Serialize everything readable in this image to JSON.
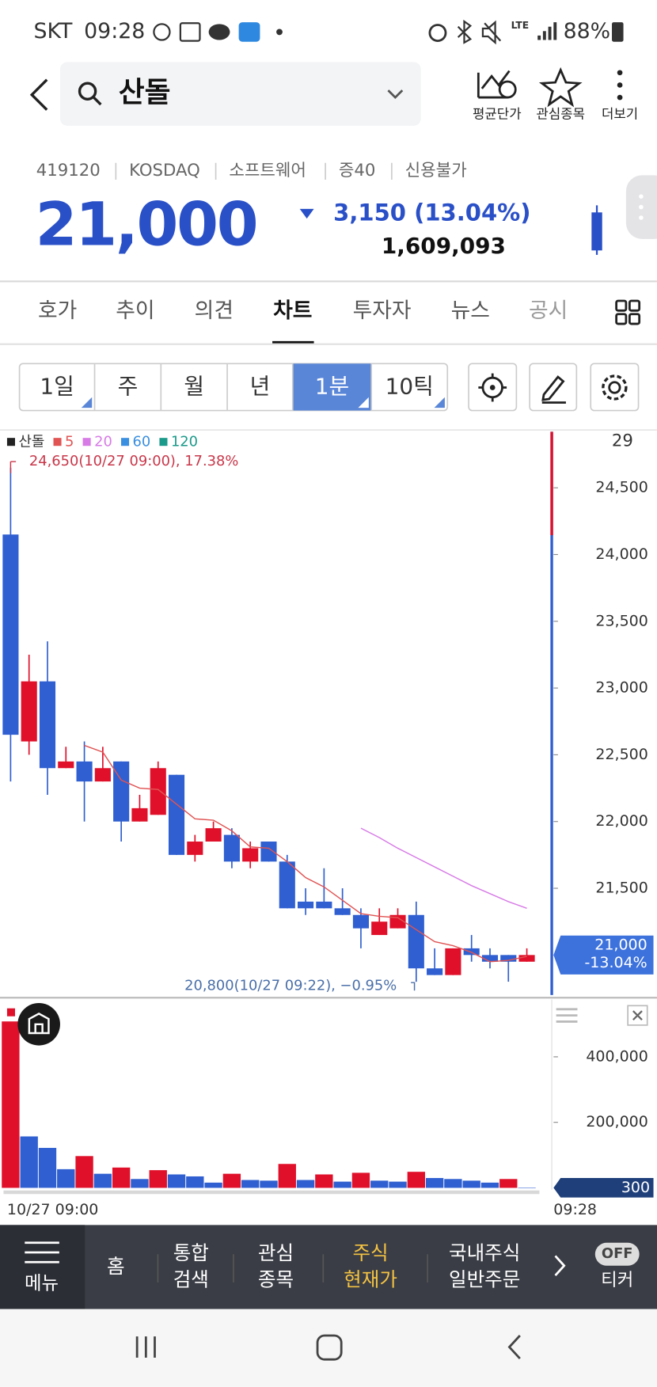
{
  "status_bar": {
    "carrier": "SKT",
    "time": "09:28",
    "network": "LTE",
    "battery": "88%"
  },
  "header": {
    "search": "산돌",
    "actions": [
      "평균단가",
      "관심종목",
      "더보기"
    ]
  },
  "stock": {
    "code": "419120",
    "market": "KOSDAQ",
    "sector": "소프트웨어",
    "margin": "증40",
    "credit": "신용불가",
    "price": "21,000",
    "change": "3,150 (13.04%)",
    "volume": "1,609,093"
  },
  "tabs": [
    "호가",
    "추이",
    "의견",
    "차트",
    "투자자",
    "뉴스",
    "공시"
  ],
  "periods": [
    "1일",
    "주",
    "월",
    "년",
    "1분",
    "10틱"
  ],
  "chart_data": [
    {
      "type": "candlestick",
      "top_label": "29",
      "categories": [
        "10/27 09:00",
        null,
        null,
        null,
        null,
        null,
        null,
        null,
        null,
        null,
        null,
        null,
        null,
        null,
        null,
        null,
        null,
        null,
        null,
        null,
        null,
        null,
        null,
        null,
        null,
        null,
        null,
        null,
        "09:28"
      ],
      "series": [
        {
          "name": "산돌",
          "color": "#222222",
          "up_color": "#e0102a",
          "down_color": "#2f5fd0",
          "open": [
            24150,
            22600,
            23050,
            22400,
            22450,
            22300,
            22450,
            22000,
            22050,
            22350,
            21750,
            21850,
            21900,
            21700,
            21850,
            21700,
            21400,
            21400,
            21350,
            21300,
            21150,
            21200,
            21300,
            20900,
            20850,
            21050,
            21000,
            21000,
            20950
          ],
          "high": [
            24650,
            23250,
            23350,
            22560,
            22600,
            22560,
            22450,
            22200,
            22450,
            22350,
            21900,
            22000,
            21950,
            21850,
            21850,
            21750,
            21500,
            21650,
            21500,
            21350,
            21350,
            21350,
            21400,
            21050,
            21050,
            21150,
            21050,
            21000,
            21050
          ],
          "low": [
            22300,
            22500,
            22200,
            22400,
            22000,
            22300,
            21850,
            22000,
            22050,
            21750,
            21700,
            21850,
            21650,
            21650,
            21700,
            21350,
            21300,
            21350,
            21300,
            21050,
            21150,
            21200,
            20800,
            20850,
            20850,
            20950,
            20900,
            20800,
            20950
          ],
          "close": [
            22650,
            23050,
            22400,
            22450,
            22300,
            22400,
            22000,
            22100,
            22400,
            21750,
            21850,
            21950,
            21700,
            21800,
            21700,
            21350,
            21350,
            21350,
            21300,
            21200,
            21250,
            21300,
            20900,
            20850,
            21050,
            21000,
            20950,
            20950,
            21000
          ]
        },
        {
          "name": "5",
          "color": "#e05454",
          "values": [
            null,
            null,
            null,
            null,
            22570,
            22520,
            22310,
            22250,
            22240,
            22130,
            22020,
            22010,
            21930,
            21810,
            21800,
            21700,
            21580,
            21510,
            21410,
            21310,
            21290,
            21280,
            21190,
            21100,
            21070,
            21020,
            20950,
            20960,
            20990
          ]
        },
        {
          "name": "20",
          "color": "#d77be6",
          "values": [
            null,
            null,
            null,
            null,
            null,
            null,
            null,
            null,
            null,
            null,
            null,
            null,
            null,
            null,
            null,
            null,
            null,
            null,
            null,
            21950,
            21880,
            21800,
            21730,
            21660,
            21590,
            21520,
            21460,
            21400,
            21350
          ]
        },
        {
          "name": "60",
          "color": "#3b8fe0",
          "values": [
            null,
            null,
            null,
            null,
            null,
            null,
            null,
            null,
            null,
            null,
            null,
            null,
            null,
            null,
            null,
            null,
            null,
            null,
            null,
            null,
            null,
            null,
            null,
            null,
            null,
            null,
            null,
            null,
            null
          ]
        },
        {
          "name": "120",
          "color": "#1a9a8a",
          "values": [
            null,
            null,
            null,
            null,
            null,
            null,
            null,
            null,
            null,
            null,
            null,
            null,
            null,
            null,
            null,
            null,
            null,
            null,
            null,
            null,
            null,
            null,
            null,
            null,
            null,
            null,
            null,
            null,
            null
          ]
        }
      ],
      "annotations": [
        {
          "index": 0,
          "value": 24650,
          "text": "24,650(10/27 09:00), 17.38%",
          "color": "#c8374a"
        },
        {
          "index": 22,
          "value": 20800,
          "text": "20,800(10/27 09:22), −0.95%",
          "color": "#4a6fa8"
        }
      ],
      "current": {
        "value": 21000,
        "label": "21,000",
        "change_label": "-13.04%"
      },
      "ylim": [
        20700,
        24920
      ],
      "yticks": [
        {
          "value": 21000,
          "label": "21,000"
        },
        {
          "value": 21500,
          "label": "21,500"
        },
        {
          "value": 22000,
          "label": "22,000"
        },
        {
          "value": 22500,
          "label": "22,500"
        },
        {
          "value": 23000,
          "label": "23,000"
        },
        {
          "value": 23500,
          "label": "23,500"
        },
        {
          "value": 24000,
          "label": "24,000"
        },
        {
          "value": 24500,
          "label": "24,500"
        }
      ]
    },
    {
      "type": "bar",
      "values": [
        508000,
        157000,
        122000,
        57000,
        97000,
        43000,
        62000,
        27000,
        54000,
        41000,
        35000,
        16000,
        43000,
        24000,
        22000,
        73000,
        24000,
        41000,
        19000,
        46000,
        22000,
        19000,
        49000,
        30000,
        27000,
        22000,
        16000,
        27000,
        300
      ],
      "colors": [
        "#e0102a",
        "#2f5fd0",
        "#2f5fd0",
        "#2f5fd0",
        "#e0102a",
        "#2f5fd0",
        "#e0102a",
        "#2f5fd0",
        "#e0102a",
        "#2f5fd0",
        "#2f5fd0",
        "#2f5fd0",
        "#e0102a",
        "#2f5fd0",
        "#2f5fd0",
        "#e0102a",
        "#2f5fd0",
        "#e0102a",
        "#2f5fd0",
        "#e0102a",
        "#2f5fd0",
        "#2f5fd0",
        "#e0102a",
        "#2f5fd0",
        "#2f5fd0",
        "#2f5fd0",
        "#2f5fd0",
        "#e0102a",
        "#2f5fd0"
      ],
      "current": {
        "value": 300,
        "label": "300"
      },
      "ylim": [
        0,
        548000
      ],
      "yticks": [
        {
          "value": 200000,
          "label": "200,000"
        },
        {
          "value": 400000,
          "label": "400,000"
        }
      ]
    }
  ],
  "bottom_nav": {
    "menu": "메뉴",
    "items": [
      [
        "홈"
      ],
      [
        "통합",
        "검색"
      ],
      [
        "관심",
        "종목"
      ],
      [
        "주식",
        "현재가"
      ],
      [
        "국내주식",
        "일반주문"
      ]
    ],
    "toggle": "OFF",
    "ticker": "티커"
  }
}
